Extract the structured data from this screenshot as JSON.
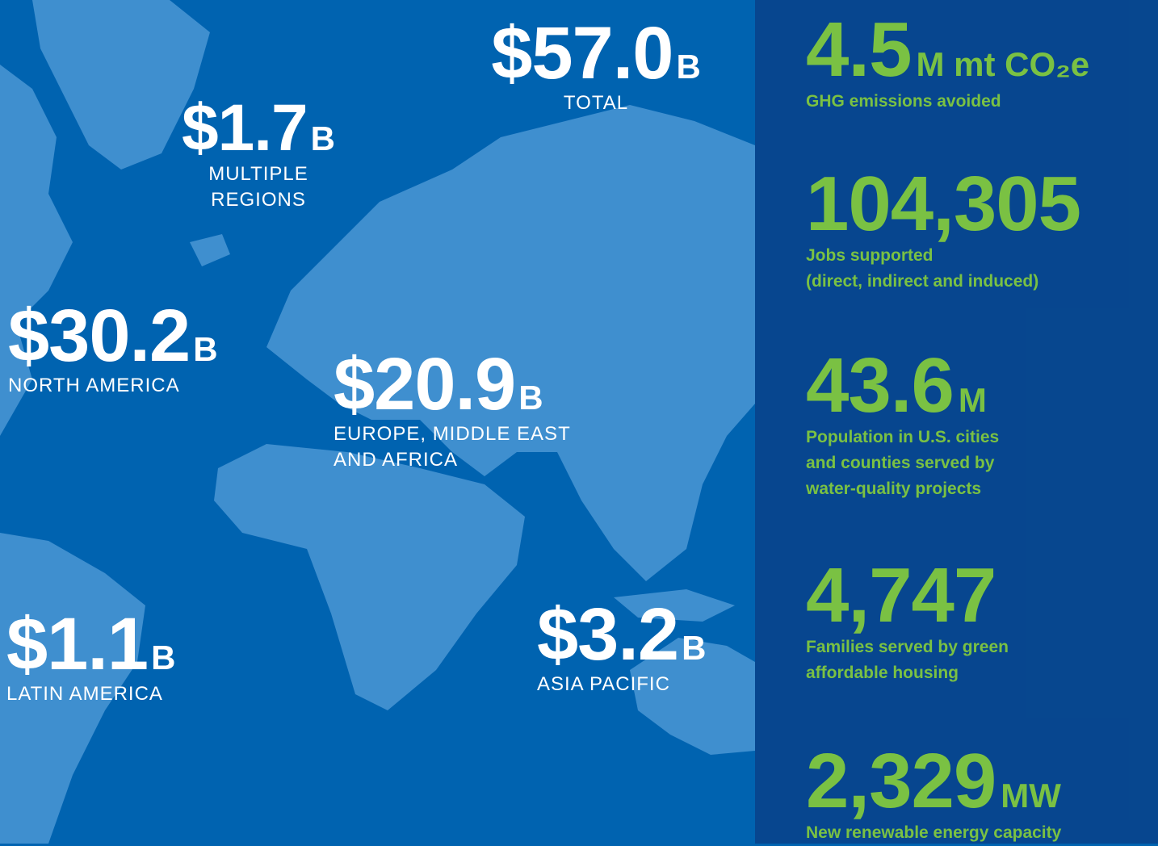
{
  "regions": [
    {
      "amount": "$57.0",
      "unit": "B",
      "label": [
        "TOTAL"
      ]
    },
    {
      "amount": "$1.7",
      "unit": "B",
      "label": [
        "MULTIPLE",
        "REGIONS"
      ]
    },
    {
      "amount": "$30.2",
      "unit": "B",
      "label": [
        "NORTH AMERICA"
      ]
    },
    {
      "amount": "$20.9",
      "unit": "B",
      "label": [
        "EUROPE, MIDDLE EAST",
        "AND AFRICA"
      ]
    },
    {
      "amount": "$1.1",
      "unit": "B",
      "label": [
        "LATIN AMERICA"
      ]
    },
    {
      "amount": "$3.2",
      "unit": "B",
      "label": [
        "ASIA PACIFIC"
      ]
    }
  ],
  "stats": [
    {
      "value": "4.5",
      "unit": "M mt CO₂e",
      "label": [
        "GHG emissions avoided"
      ]
    },
    {
      "value": "104,305",
      "unit": "",
      "label": [
        "Jobs supported",
        "(direct, indirect and induced)"
      ]
    },
    {
      "value": "43.6",
      "unit": "M",
      "label": [
        "Population in U.S. cities",
        "and counties served by",
        "water-quality projects"
      ]
    },
    {
      "value": "4,747",
      "unit": "",
      "label": [
        "Families served by green",
        "affordable housing"
      ]
    },
    {
      "value": "2,329",
      "unit": "MW",
      "label": [
        "New renewable energy capacity"
      ]
    }
  ]
}
